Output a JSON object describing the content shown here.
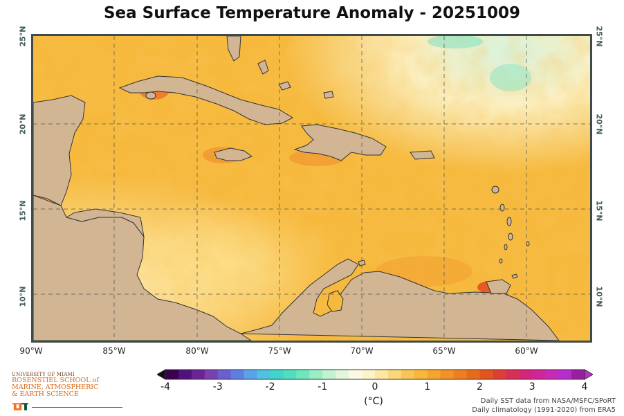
{
  "title": "Sea Surface Temperature Anomaly - 20251009",
  "map": {
    "lat_labels": [
      "25°N",
      "20°N",
      "15°N",
      "10°N"
    ],
    "lon_labels": [
      "90°W",
      "85°W",
      "80°W",
      "75°W",
      "70°W",
      "65°W",
      "60°W"
    ],
    "land_color": "#d2b593",
    "ocean_base_color": "#f6b73a"
  },
  "colorbar": {
    "ticks": [
      "-4",
      "-3",
      "-2",
      "-1",
      "0",
      "1",
      "2",
      "3",
      "4"
    ],
    "units": "(°C)",
    "colors": [
      "#3a0050",
      "#52107a",
      "#6a2496",
      "#7a3fb0",
      "#6a5fcf",
      "#5f7fe0",
      "#5aa3e8",
      "#4fc2e0",
      "#3fd4cc",
      "#4fdfbf",
      "#6fe6bd",
      "#9aeec4",
      "#c2f2cf",
      "#e2f6dc",
      "#fbf9e3",
      "#fdf3c9",
      "#fde7a4",
      "#fbd77c",
      "#f8c656",
      "#f6b73a",
      "#f4a52e",
      "#f19226",
      "#ee7f20",
      "#e96a1d",
      "#e2561d",
      "#dd3f35",
      "#d92f55",
      "#d5257a",
      "#cf2599",
      "#c62ab6",
      "#b82ccc",
      "#9a1fa0"
    ]
  },
  "logo": {
    "university": "UNIVERSITY OF MIAMI",
    "school_line1": "ROSENSTIEL SCHOOL of",
    "school_line2": "MARINE, ATMOSPHERIC",
    "school_line3": "& EARTH SCIENCE"
  },
  "credits": {
    "line1": "Daily SST data from NASA/MSFC/SPoRT",
    "line2": "Daily climatology (1991-2020) from ERA5"
  }
}
